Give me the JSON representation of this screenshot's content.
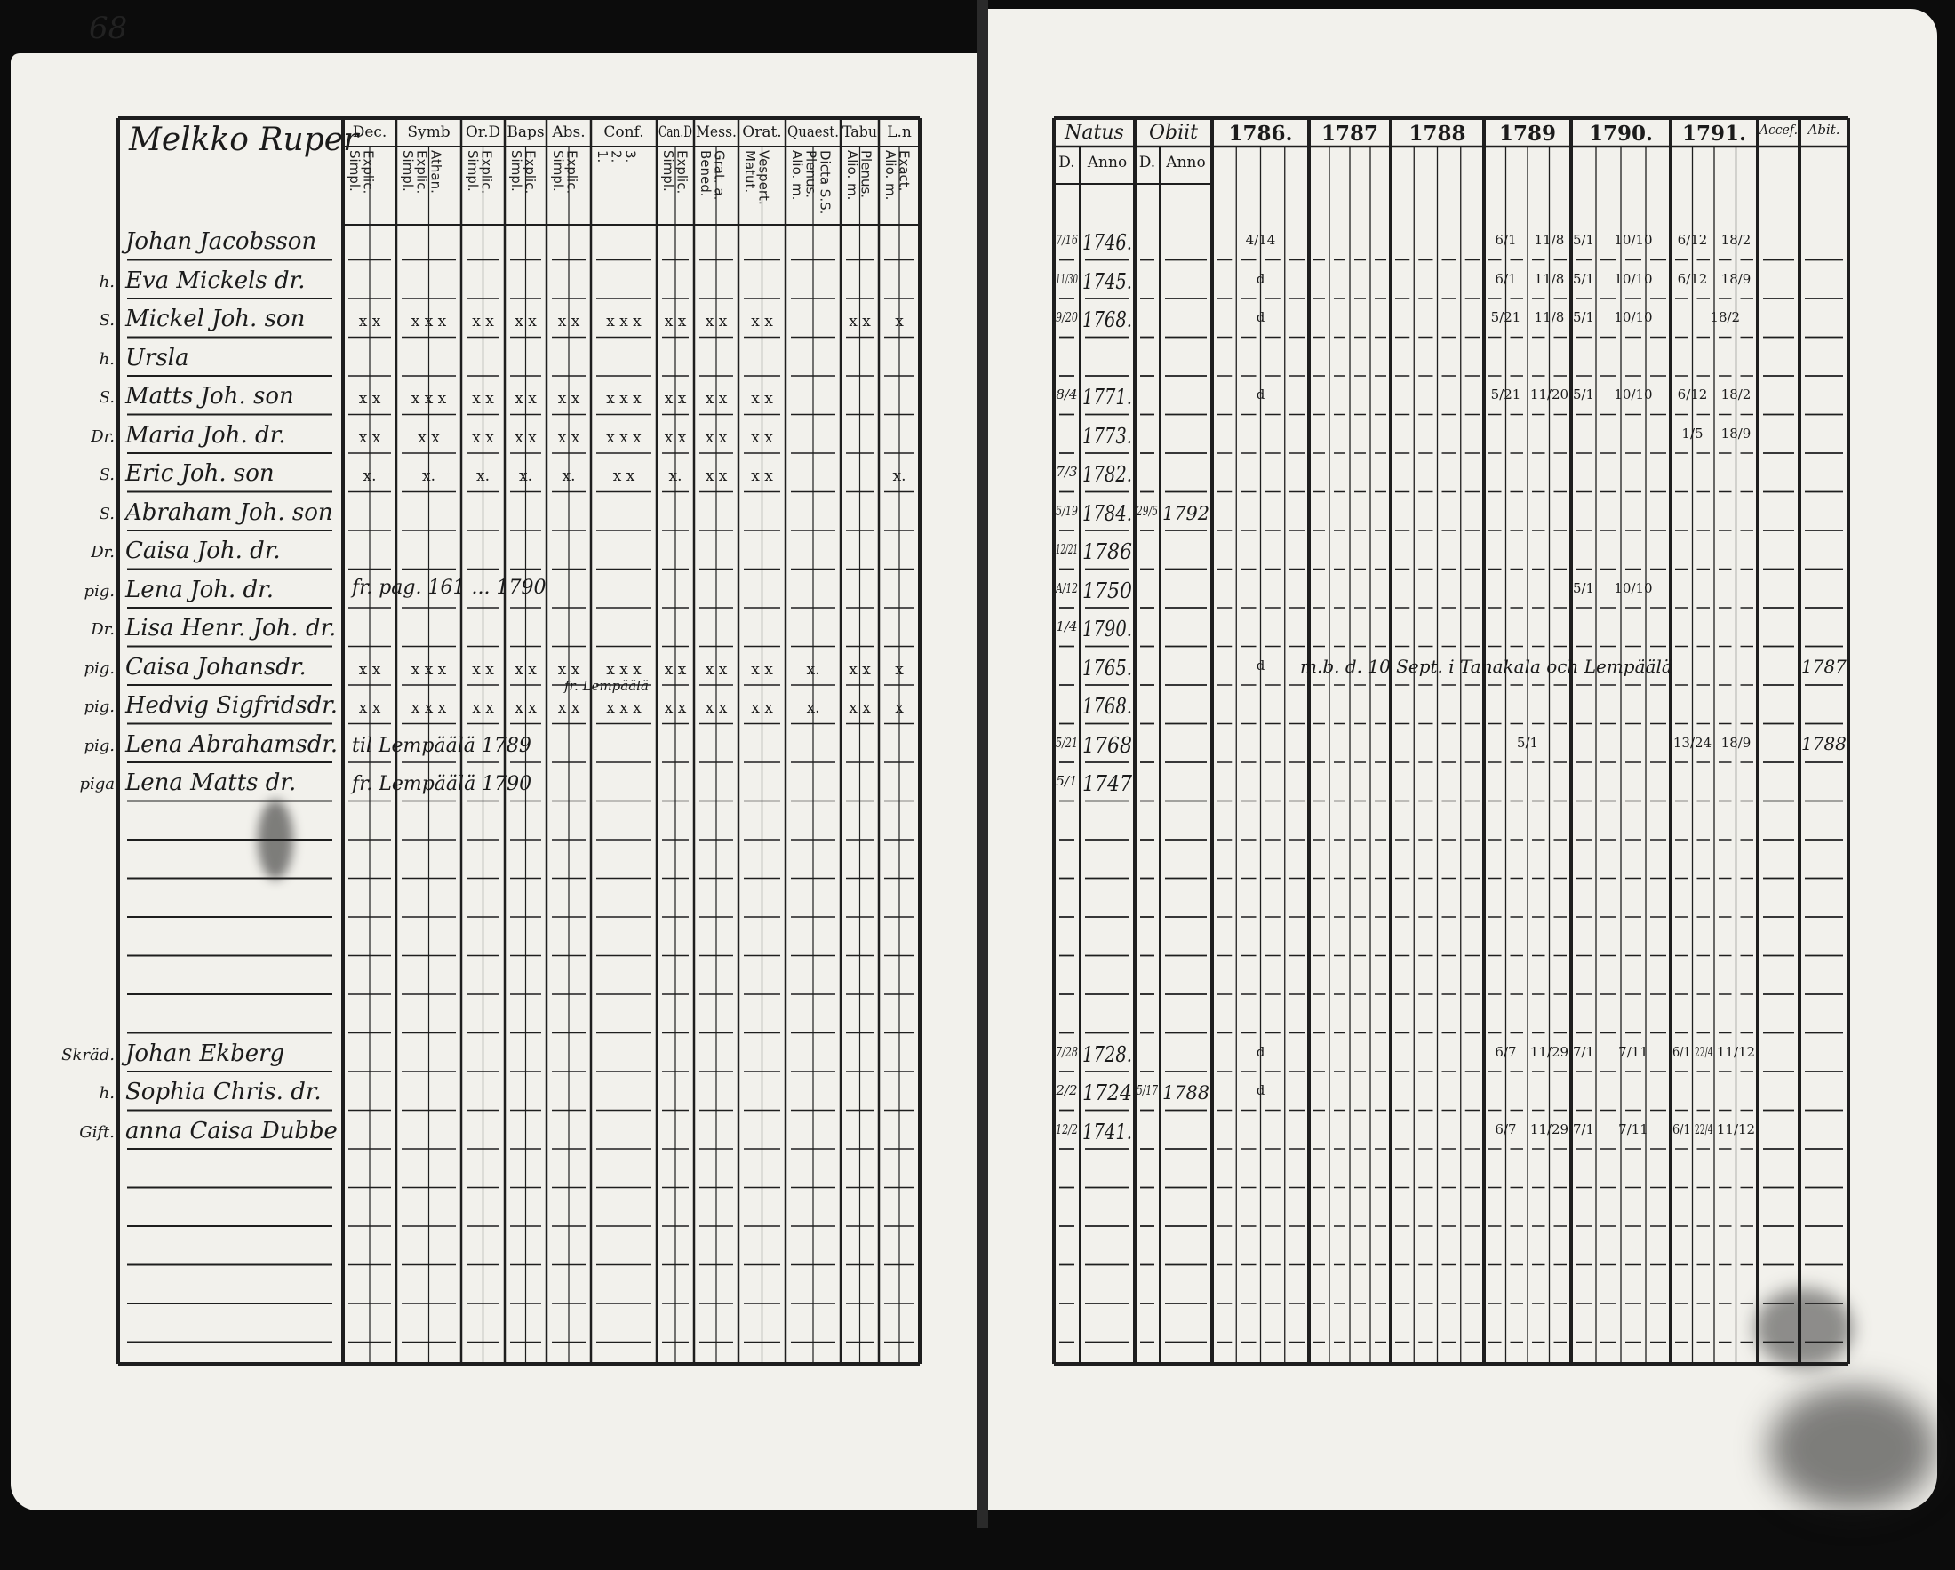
{
  "page_number": "68",
  "left_page": {
    "village_title": "Melkko Ruper",
    "columns": [
      {
        "head": "Dec.",
        "sub": "Explic.\nSimpl."
      },
      {
        "head": "Symb",
        "sub": "Athan.\nExplic.\nSimpl."
      },
      {
        "head": "Or.D",
        "sub": "Explic.\nSimpl."
      },
      {
        "head": "Baps",
        "sub": "Explic.\nSimpl."
      },
      {
        "head": "Abs.",
        "sub": "Explic.\nSimpl."
      },
      {
        "head": "Conf.",
        "sub": "3.\n2.\n1."
      },
      {
        "head": "Can.D",
        "sub": "Explic.\nSimpl."
      },
      {
        "head": "Mess.",
        "sub": "Grat. a.\nBened."
      },
      {
        "head": "Orat.",
        "sub": "Vespert.\nMatut."
      },
      {
        "head": "Quaest.",
        "sub": "Dicta S.S.\nPlenus.\nAlio. m."
      },
      {
        "head": "Tabu",
        "sub": "Plenus.\nAlio. m."
      },
      {
        "head": "L.n",
        "sub": "Exact.\nAlio. m."
      }
    ]
  },
  "right_page": {
    "headers": {
      "natus": "Natus",
      "obiit": "Obiit",
      "d": "D.",
      "anno": "Anno",
      "accef": "Accef.",
      "abit": "Abit."
    },
    "years": [
      "1786.",
      "1787",
      "1788",
      "1789",
      "1790.",
      "1791."
    ]
  },
  "rows": [
    {
      "row": 0,
      "prefix": "",
      "name": "Johan Jacobsson",
      "marks": [],
      "natus_d": "7/16",
      "natus_anno": "1746.",
      "y": {
        "1786.": [
          "",
          "4/14"
        ],
        "1789": [
          "",
          "6/1",
          "",
          "11/8"
        ],
        "1790.": [
          "5/1",
          "",
          "10/10"
        ],
        "1791.": [
          "6/12",
          "",
          "18/2"
        ]
      }
    },
    {
      "row": 1,
      "prefix": "h.",
      "name": "Eva Mickels dr.",
      "marks": [],
      "natus_d": "11/30",
      "natus_anno": "1745.",
      "y": {
        "1786.": [
          "",
          "d"
        ],
        "1789": [
          "",
          "6/1",
          "",
          "11/8"
        ],
        "1790.": [
          "5/1",
          "",
          "10/10"
        ],
        "1791.": [
          "6/12",
          "",
          "18/9"
        ]
      }
    },
    {
      "row": 2,
      "prefix": "S.",
      "name": "Mickel Joh. son",
      "marks": [
        "x x",
        "x x x",
        "x x",
        "x x",
        "x x",
        "x x x",
        "x x",
        "x x",
        "x x",
        "",
        "x x",
        "x"
      ],
      "natus_d": "9/20",
      "natus_anno": "1768.",
      "y": {
        "1786.": [
          "",
          "d"
        ],
        "1789": [
          "",
          "5/21",
          "",
          "11/8"
        ],
        "1790.": [
          "5/1",
          "",
          "10/10"
        ],
        "1791.": [
          "",
          "",
          "18/2"
        ]
      }
    },
    {
      "row": 3,
      "prefix": "h.",
      "name": "Ursla",
      "marks": [],
      "y": {}
    },
    {
      "row": 4,
      "prefix": "S.",
      "name": "Matts Joh. son",
      "marks": [
        "x x",
        "x x x",
        "x x",
        "x x",
        "x x",
        "x x x",
        "x x",
        "x x",
        "x x",
        "",
        "",
        ""
      ],
      "natus_d": "8/4",
      "natus_anno": "1771.",
      "y": {
        "1786.": [
          "",
          "d"
        ],
        "1789": [
          "",
          "5/21",
          "",
          "11/20"
        ],
        "1790.": [
          "5/1",
          "",
          "10/10"
        ],
        "1791.": [
          "6/12",
          "",
          "18/2"
        ]
      }
    },
    {
      "row": 5,
      "prefix": "Dr.",
      "name": "Maria Joh. dr.",
      "marks": [
        "x x",
        "x x",
        "x x",
        "x x",
        "x x",
        "x x x",
        "x x",
        "x x",
        "x x",
        "",
        "",
        ""
      ],
      "natus_d": "",
      "natus_anno": "1773.",
      "y": {
        "1791.": [
          "",
          "1/5",
          "18/9"
        ]
      }
    },
    {
      "row": 6,
      "prefix": "S.",
      "name": "Eric Joh. son",
      "marks": [
        "x.",
        "x.",
        "x.",
        "x.",
        "x.",
        "x x",
        "x.",
        "x x",
        "x x",
        "",
        "",
        "x."
      ],
      "natus_d": "7/3",
      "natus_anno": "1782.",
      "y": {}
    },
    {
      "row": 7,
      "prefix": "S.",
      "name": "Abraham Joh. son",
      "marks": [],
      "natus_d": "5/19",
      "natus_anno": "1784.",
      "obiit_d": "29/5",
      "obiit_anno": "1792",
      "y": {}
    },
    {
      "row": 8,
      "prefix": "Dr.",
      "name": "Caisa Joh. dr.",
      "marks": [],
      "natus_d": "12/21",
      "natus_anno": "1786",
      "y": {}
    },
    {
      "row": 9,
      "prefix": "pig.",
      "name": "Lena Joh. dr.",
      "marks": [],
      "note": "fr. pag. 161 ... 1790",
      "natus_d": "A/12",
      "natus_anno": "1750",
      "y": {
        "1790.": [
          "5/1",
          "",
          "10/10"
        ]
      }
    },
    {
      "row": 10,
      "prefix": "Dr.",
      "name": "Lisa Henr. Joh. dr.",
      "marks": [],
      "natus_d": "1/4",
      "natus_anno": "1790.",
      "y": {}
    },
    {
      "row": 11,
      "prefix": "pig.",
      "name": "Caisa Johansdr.",
      "marks": [
        "x x",
        "x x x",
        "x x",
        "x x",
        "x x",
        "x x x",
        "x x",
        "x x",
        "x x",
        "x.",
        "x x",
        "x"
      ],
      "natus_d": "",
      "natus_anno": "1765.",
      "right_note": "m.b. d. 10 Sept. i Tanakala och Lempäälä",
      "accef": "1787",
      "y": {
        "1786.": [
          "",
          "d"
        ]
      }
    },
    {
      "row": 12,
      "prefix": "pig.",
      "name": "Hedvig Sigfridsdr.",
      "marks": [
        "x x",
        "x x x",
        "x x",
        "x x",
        "x x",
        "x x x",
        "x x",
        "x x",
        "x x",
        "x.",
        "x x",
        "x"
      ],
      "note_above": "fr. Lempäälä",
      "natus_d": "",
      "natus_anno": "1768.",
      "y": {}
    },
    {
      "row": 13,
      "prefix": "pig.",
      "name": "Lena Abrahamsdr.",
      "marks": [],
      "note": "til Lempäälä 1789",
      "natus_d": "5/21",
      "natus_anno": "1768",
      "accef": "1788",
      "y": {
        "1789": [
          "",
          "5/1"
        ],
        "1791.": [
          "13/24",
          "",
          "18/9"
        ]
      }
    },
    {
      "row": 14,
      "prefix": "piga",
      "name": "Lena Matts dr.",
      "marks": [],
      "note": "fr. Lempäälä 1790",
      "natus_d": "5/1",
      "natus_anno": "1747",
      "y": {}
    },
    {
      "row": 21,
      "prefix": "Skräd.",
      "name": "Johan Ekberg",
      "marks": [],
      "natus_d": "7/28",
      "natus_anno": "1728.",
      "y": {
        "1786.": [
          "",
          "d"
        ],
        "1789": [
          "",
          "6/7",
          "",
          "11/29"
        ],
        "1790.": [
          "7/1",
          "",
          "7/11"
        ],
        "1791.": [
          "6/1",
          "22/4",
          "",
          "11/12"
        ]
      }
    },
    {
      "row": 22,
      "prefix": "h.",
      "name": "Sophia Chris. dr.",
      "marks": [],
      "natus_d": "2/2",
      "natus_anno": "1724",
      "obiit_d": "5/17",
      "obiit_anno": "1788",
      "y": {
        "1786.": [
          "",
          "d"
        ]
      }
    },
    {
      "row": 23,
      "prefix": "Gift.",
      "name": "anna Caisa Dubbe",
      "marks": [],
      "natus_d": "12/2",
      "natus_anno": "1741.",
      "y": {
        "1789": [
          "",
          "6/7",
          "",
          "11/29"
        ],
        "1790.": [
          "7/1",
          "",
          "7/11"
        ],
        "1791.": [
          "6/1",
          "22/4",
          "",
          "11/12"
        ]
      }
    }
  ]
}
